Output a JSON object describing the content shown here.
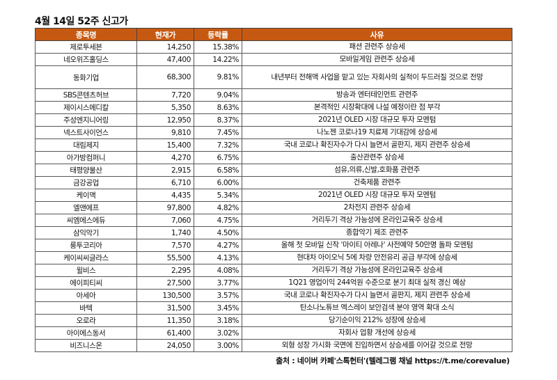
{
  "title": "4월 14일 52주 신고가",
  "headers": [
    "종목명",
    "현재가",
    "등락률",
    "사유"
  ],
  "rows": [
    {
      "name": "제로투세븐",
      "price": "14,250",
      "change": "15.38%",
      "reason": "패션 관련주 상승세"
    },
    {
      "name": "네오위즈홀딩스",
      "price": "47,400",
      "change": "14.22%",
      "reason": "모바일게임 관련주 상승세"
    },
    {
      "name": "동화기업",
      "price": "68,300",
      "change": "9.81%",
      "reason": "내년부터 전해액 사업을 맡고 있는 자회사의 실적이 두드러질 것으로 전망"
    },
    {
      "name": "SBS콘텐츠허브",
      "price": "7,720",
      "change": "9.04%",
      "reason": "방송과 엔터테인먼트 관련주"
    },
    {
      "name": "제이시스메디칼",
      "price": "5,350",
      "change": "8.63%",
      "reason": "본격적인 시장확대에 나설 예정이란 점 부각"
    },
    {
      "name": "주성엔지니어링",
      "price": "12,950",
      "change": "8.37%",
      "reason": "2021년 OLED 시장 대규모 투자 모멘텀"
    },
    {
      "name": "넥스트사이언스",
      "price": "9,810",
      "change": "7.45%",
      "reason": "나노젠 코로나19 치료제 기대감에 상승세"
    },
    {
      "name": "대림제지",
      "price": "15,400",
      "change": "7.32%",
      "reason": "국내 코로나 확진자수가 다시 늘면서 골판지, 제지 관련주 상승세"
    },
    {
      "name": "아가방컴퍼니",
      "price": "4,270",
      "change": "6.75%",
      "reason": "출산관련주 상승세"
    },
    {
      "name": "태평양물산",
      "price": "2,915",
      "change": "6.58%",
      "reason": "섬유,의류,신발,호화품 관련주"
    },
    {
      "name": "금강공업",
      "price": "6,710",
      "change": "6.00%",
      "reason": "건축제품 관련주"
    },
    {
      "name": "케이맥",
      "price": "4,435",
      "change": "5.34%",
      "reason": "2021년 OLED 시장 대규모 투자 모멘텀"
    },
    {
      "name": "엘앤에프",
      "price": "97,800",
      "change": "4.82%",
      "reason": "2차전지 관련주 상승세"
    },
    {
      "name": "씨엠에스에듀",
      "price": "7,060",
      "change": "4.75%",
      "reason": "거리두기 격상 가능성에 온라인교육주 상승세"
    },
    {
      "name": "삼익악기",
      "price": "1,740",
      "change": "4.50%",
      "reason": "종합악기 제조 관련주"
    },
    {
      "name": "룽투코리아",
      "price": "7,570",
      "change": "4.27%",
      "reason": "올해 첫 모바일 신작 '마이티 아레나' 사전예약 50만명 돌파 모멘텀"
    },
    {
      "name": "케이씨씨글라스",
      "price": "55,500",
      "change": "4.13%",
      "reason": "현대차 아이오닉 5에 차량 안전유리 공급 부각에 상승세"
    },
    {
      "name": "윌비스",
      "price": "2,295",
      "change": "4.08%",
      "reason": "거리두기 격상 가능성에 온라인교육주 상승세"
    },
    {
      "name": "에이피티씨",
      "price": "27,500",
      "change": "3.77%",
      "reason": "1Q21 영업이익 244억원 수준으로 분기 최대 실적 경신 예상"
    },
    {
      "name": "아세아",
      "price": "130,500",
      "change": "3.57%",
      "reason": "국내 코로나 확진자수가 다시 늘면서 골판지, 제지 관련주 상승세"
    },
    {
      "name": "바텍",
      "price": "31,500",
      "change": "3.45%",
      "reason": "탄소나노튜브 엑스레이 보안검색 분야 영역 확대 소식"
    },
    {
      "name": "오로라",
      "price": "11,350",
      "change": "3.18%",
      "reason": "당기순이익 212% 성장에 상승세"
    },
    {
      "name": "아이에스동서",
      "price": "61,400",
      "change": "3.02%",
      "reason": "자회사 업황 개선에 상승세"
    },
    {
      "name": "비즈니스온",
      "price": "24,050",
      "change": "3.00%",
      "reason": "외형 성장 가시화 국면에 진입하면서 상승세를 이어갈 것으로 전망"
    }
  ],
  "source": "출처 : 네이버 카페'스톡헌터'(텔레그램 채널 https://t.me/corevalue)",
  "colors": {
    "header_bg": "#c65911",
    "header_text": "#ffffff"
  }
}
